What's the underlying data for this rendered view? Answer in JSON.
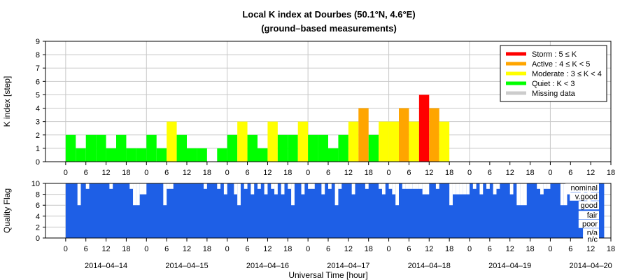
{
  "title": "Local K index at Dourbes (50.1°N, 4.6°E)",
  "subtitle": "(ground–based measurements)",
  "colors": {
    "storm": "#ff0000",
    "active": "#ffa500",
    "moderate": "#ffff00",
    "quiet": "#00ff00",
    "missing": "#cccccc",
    "quality": "#1e5fe6",
    "grid": "#c8c8c8",
    "axis": "#000000"
  },
  "chart_data": [
    {
      "type": "bar",
      "ylabel": "K index [step]",
      "ylim": [
        0,
        9
      ],
      "yticks": [
        "0",
        "1",
        "2",
        "3",
        "4",
        "5",
        "6",
        "7",
        "8",
        "9"
      ],
      "x_unit": "hours since 2014-04-14 00:00 UT, 3-hour bins",
      "xlim": [
        -6,
        162
      ],
      "xtick_labels": [
        "0",
        "6",
        "12",
        "18",
        "0",
        "6",
        "12",
        "18",
        "0",
        "6",
        "12",
        "18",
        "0",
        "6",
        "12",
        "18",
        "0",
        "6",
        "12",
        "18",
        "0",
        "6",
        "12",
        "18",
        "0",
        "6",
        "12",
        "18",
        "0"
      ],
      "legend": {
        "placement": "top-right",
        "entries": [
          {
            "label": "Storm : 5 ≤ K",
            "color_key": "storm"
          },
          {
            "label": "Active : 4 ≤ K < 5",
            "color_key": "active"
          },
          {
            "label": "Moderate : 3 ≤ K < 4",
            "color_key": "moderate"
          },
          {
            "label": "Quiet : K < 3",
            "color_key": "quiet"
          },
          {
            "label": "Missing data",
            "color_key": "missing"
          }
        ]
      },
      "values": [
        2,
        1,
        2,
        2,
        1,
        2,
        1,
        1,
        2,
        1,
        3,
        2,
        1,
        1,
        0,
        1,
        2,
        3,
        2,
        1,
        3,
        2,
        2,
        3,
        2,
        2,
        1,
        2,
        3,
        4,
        2,
        3,
        3,
        4,
        3,
        5,
        4,
        3
      ]
    },
    {
      "type": "bar",
      "ylabel": "Quality Flag",
      "ylim": [
        0,
        10
      ],
      "yticks": [
        "0",
        "2",
        "4",
        "6",
        "8",
        "10"
      ],
      "category_labels": [
        "nominal",
        "v.good",
        "good",
        "fair",
        "poor",
        "n/a",
        "n/c"
      ],
      "date_labels": [
        "2014–04–14",
        "2014–04–15",
        "2014–04–16",
        "2014–04–17",
        "2014–04–18",
        "2014–04–19",
        "2014–04–20"
      ],
      "xlabel": "Universal Time [hour]",
      "notches": [
        {
          "t": 4,
          "v": 6
        },
        {
          "t": 6.5,
          "v": 9
        },
        {
          "t": 13.5,
          "v": 9
        },
        {
          "t": 19.5,
          "v": 9
        },
        {
          "t": 20.5,
          "v": 6
        },
        {
          "t": 21.5,
          "v": 6
        },
        {
          "t": 22.5,
          "v": 8
        },
        {
          "t": 23.5,
          "v": 8
        },
        {
          "t": 29.5,
          "v": 6
        },
        {
          "t": 30.5,
          "v": 9
        },
        {
          "t": 31.5,
          "v": 9
        },
        {
          "t": 41.5,
          "v": 9
        },
        {
          "t": 45.5,
          "v": 9
        },
        {
          "t": 47.5,
          "v": 8
        },
        {
          "t": 50.5,
          "v": 8
        },
        {
          "t": 51.5,
          "v": 6
        },
        {
          "t": 53.5,
          "v": 9
        },
        {
          "t": 55.5,
          "v": 8
        },
        {
          "t": 57.5,
          "v": 9
        },
        {
          "t": 59.5,
          "v": 8
        },
        {
          "t": 61.5,
          "v": 9
        },
        {
          "t": 62.5,
          "v": 8
        },
        {
          "t": 64.5,
          "v": 8
        },
        {
          "t": 66.5,
          "v": 9
        },
        {
          "t": 67.5,
          "v": 6
        },
        {
          "t": 70.5,
          "v": 8
        },
        {
          "t": 72.5,
          "v": 9
        },
        {
          "t": 73.5,
          "v": 9
        },
        {
          "t": 76.5,
          "v": 8
        },
        {
          "t": 78.5,
          "v": 9
        },
        {
          "t": 80.5,
          "v": 6
        },
        {
          "t": 81.5,
          "v": 9
        },
        {
          "t": 85.5,
          "v": 8
        },
        {
          "t": 89.5,
          "v": 9
        },
        {
          "t": 93.5,
          "v": 9
        },
        {
          "t": 94.5,
          "v": 8
        },
        {
          "t": 96.5,
          "v": 9
        },
        {
          "t": 97.5,
          "v": 8
        },
        {
          "t": 98.5,
          "v": 6
        },
        {
          "t": 100.5,
          "v": 9
        },
        {
          "t": 101.5,
          "v": 9
        },
        {
          "t": 102.5,
          "v": 9
        },
        {
          "t": 103.5,
          "v": 9
        },
        {
          "t": 104.5,
          "v": 9
        },
        {
          "t": 105.5,
          "v": 9
        },
        {
          "t": 106.5,
          "v": 8
        },
        {
          "t": 107.5,
          "v": 8
        },
        {
          "t": 110.5,
          "v": 9
        },
        {
          "t": 114.5,
          "v": 6
        },
        {
          "t": 115.5,
          "v": 8
        },
        {
          "t": 116.5,
          "v": 8
        },
        {
          "t": 117.5,
          "v": 8
        },
        {
          "t": 118.5,
          "v": 8
        },
        {
          "t": 119.5,
          "v": 8
        },
        {
          "t": 121.5,
          "v": 9
        },
        {
          "t": 123.5,
          "v": 8
        },
        {
          "t": 125.5,
          "v": 9
        },
        {
          "t": 127.5,
          "v": 8
        },
        {
          "t": 128.5,
          "v": 9
        },
        {
          "t": 132.5,
          "v": 8
        },
        {
          "t": 134.5,
          "v": 6
        },
        {
          "t": 135.5,
          "v": 6
        },
        {
          "t": 136.5,
          "v": 6
        },
        {
          "t": 140.5,
          "v": 9
        },
        {
          "t": 141.5,
          "v": 8
        },
        {
          "t": 142.5,
          "v": 9
        },
        {
          "t": 143.5,
          "v": 9
        },
        {
          "t": 147.5,
          "v": 6
        },
        {
          "t": 148.5,
          "v": 6
        },
        {
          "t": 149.5,
          "v": 8
        },
        {
          "t": 151.5,
          "v": 9
        },
        {
          "t": 153.5,
          "v": 8
        },
        {
          "t": 155.5,
          "v": 6
        }
      ]
    }
  ]
}
